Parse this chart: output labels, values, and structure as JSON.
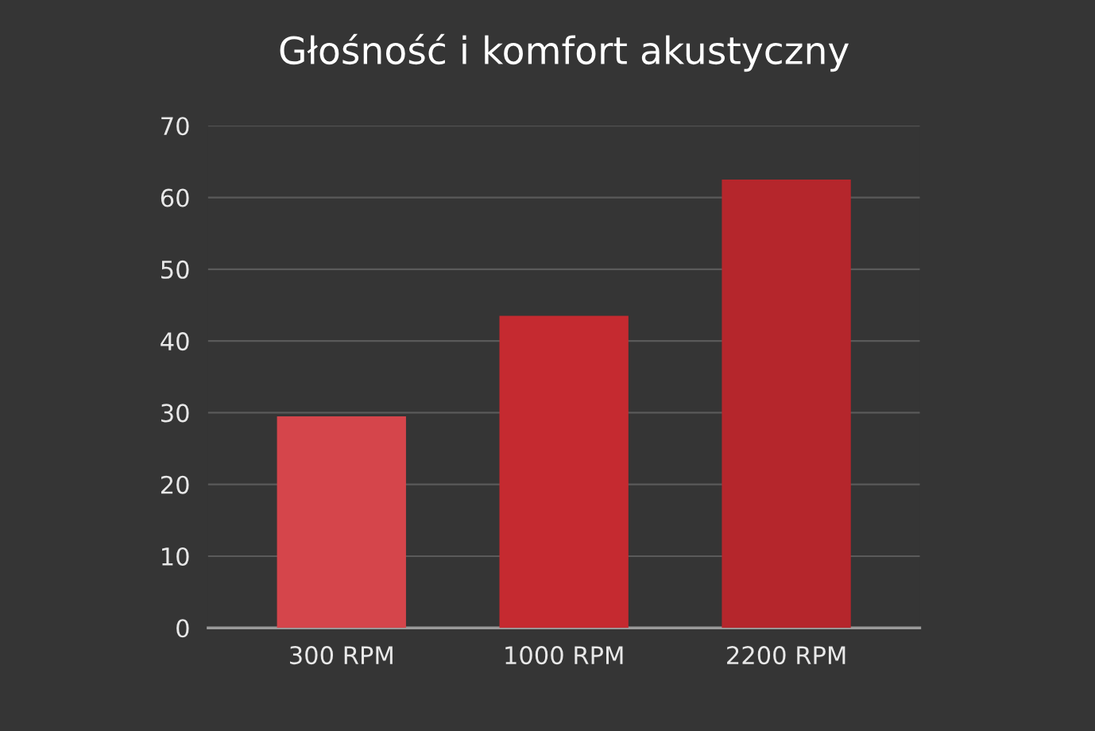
{
  "chart_data": {
    "type": "bar",
    "title": "Głośność i komfort akustyczny",
    "categories": [
      "300 RPM",
      "1000 RPM",
      "2200 RPM"
    ],
    "values": [
      29.5,
      43.5,
      62.5
    ],
    "colors": [
      "#d5454b",
      "#c52a30",
      "#b5262c"
    ],
    "ylim": [
      0,
      70
    ],
    "yticks": [
      0,
      10,
      20,
      30,
      40,
      50,
      60,
      70
    ],
    "grid": "y"
  }
}
